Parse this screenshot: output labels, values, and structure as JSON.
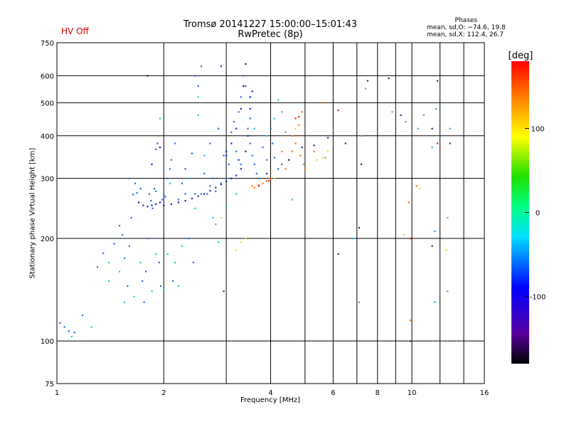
{
  "status": {
    "hv_label": "HV Off",
    "hv_color": "#cc0000"
  },
  "title": {
    "line1": "Tromsø 20141227 15:00:00–15:01:43",
    "line2": "RwPretec (8p)"
  },
  "phase_stats": {
    "heading": "Phases",
    "line1": "mean, sd,O: −74.6, 19.8",
    "line2": "mean, sd,X: 112.4, 26.7"
  },
  "chart_data": {
    "type": "scatter",
    "title": "Tromsø 20141227 15:00:00–15:01:43",
    "subtitle": "RwPretec (8p)",
    "xlabel": "Frequency [MHz]",
    "ylabel": "Stationary phase Virtual Height [km]",
    "x_scale": "log",
    "y_scale": "log",
    "xlim": [
      1,
      16
    ],
    "ylim": [
      75,
      750
    ],
    "x_ticks": [
      1,
      2,
      4,
      6,
      8,
      10,
      16
    ],
    "x_tick_labels": [
      "1",
      "2",
      "4",
      "6",
      "8",
      "10",
      "16"
    ],
    "x_minor": [
      3,
      5,
      7,
      9,
      12,
      14
    ],
    "y_ticks": [
      75,
      100,
      200,
      300,
      400,
      500,
      600,
      750
    ],
    "y_tick_labels": [
      "75",
      "100",
      "200",
      "300",
      "400",
      "500",
      "600",
      "750"
    ],
    "grid": true,
    "colorbar": {
      "label": "[deg]",
      "min": -180,
      "max": 180,
      "ticks": [
        100,
        0,
        -100
      ],
      "tick_labels": [
        "100",
        "0",
        "-100"
      ]
    },
    "series": [
      {
        "color": "#1f6fe0",
        "points": [
          [
            1.02,
            113
          ],
          [
            1.05,
            110
          ],
          [
            1.08,
            107
          ],
          [
            1.12,
            106
          ],
          [
            1.18,
            119
          ],
          [
            1.3,
            165
          ],
          [
            1.35,
            181
          ],
          [
            1.45,
            193
          ],
          [
            1.5,
            218
          ],
          [
            1.53,
            205
          ],
          [
            1.55,
            175
          ],
          [
            1.58,
            145
          ],
          [
            1.6,
            190
          ],
          [
            1.62,
            230
          ],
          [
            1.64,
            269
          ],
          [
            1.66,
            290
          ],
          [
            1.68,
            272
          ],
          [
            1.7,
            255
          ],
          [
            1.72,
            280
          ],
          [
            1.74,
            150
          ],
          [
            1.76,
            130
          ],
          [
            1.78,
            160
          ],
          [
            1.8,
            200
          ],
          [
            1.82,
            270
          ],
          [
            1.84,
            258
          ],
          [
            1.86,
            245
          ],
          [
            1.88,
            280
          ],
          [
            1.9,
            365
          ],
          [
            1.92,
            380
          ],
          [
            1.94,
            170
          ],
          [
            1.96,
            145
          ],
          [
            1.98,
            260
          ],
          [
            2.0,
            250
          ],
          [
            2.02,
            265
          ],
          [
            2.05,
            300
          ],
          [
            2.08,
            320
          ],
          [
            2.1,
            340
          ],
          [
            2.12,
            150
          ],
          [
            2.15,
            380
          ],
          [
            2.2,
            260
          ],
          [
            2.25,
            290
          ],
          [
            2.3,
            320
          ],
          [
            2.35,
            200
          ],
          [
            2.4,
            355
          ],
          [
            2.42,
            170
          ],
          [
            2.45,
            270
          ],
          [
            2.5,
            560
          ],
          [
            2.55,
            270
          ],
          [
            2.6,
            310
          ],
          [
            2.65,
            270
          ],
          [
            2.7,
            380
          ],
          [
            2.75,
            300
          ],
          [
            2.8,
            275
          ],
          [
            2.85,
            420
          ],
          [
            2.9,
            290
          ],
          [
            2.95,
            350
          ],
          [
            3.0,
            300
          ],
          [
            3.05,
            330
          ],
          [
            3.1,
            410
          ],
          [
            3.15,
            440
          ],
          [
            3.2,
            360
          ],
          [
            3.25,
            470
          ],
          [
            3.3,
            520
          ],
          [
            3.35,
            600
          ],
          [
            3.4,
            560
          ],
          [
            3.45,
            420
          ],
          [
            3.5,
            380
          ],
          [
            3.55,
            350
          ],
          [
            3.6,
            330
          ],
          [
            3.65,
            310
          ],
          [
            3.7,
            300
          ],
          [
            3.8,
            370
          ],
          [
            3.9,
            340
          ],
          [
            4.0,
            420
          ],
          [
            4.05,
            380
          ],
          [
            4.1,
            345
          ],
          [
            4.2,
            320
          ],
          [
            4.3,
            330
          ],
          [
            1.6,
            300
          ],
          [
            1.9,
            275
          ],
          [
            2.0,
            268
          ],
          [
            2.3,
            270
          ],
          [
            2.7,
            285
          ],
          [
            3.1,
            300
          ],
          [
            3.3,
            330
          ],
          [
            3.5,
            450
          ],
          [
            2.45,
            600
          ],
          [
            2.55,
            640
          ]
        ]
      },
      {
        "color": "#2020b0",
        "points": [
          [
            1.7,
            255
          ],
          [
            1.75,
            250
          ],
          [
            1.8,
            248
          ],
          [
            1.85,
            250
          ],
          [
            1.9,
            252
          ],
          [
            1.95,
            255
          ],
          [
            2.0,
            250
          ],
          [
            2.1,
            252
          ],
          [
            2.2,
            255
          ],
          [
            2.3,
            258
          ],
          [
            2.4,
            262
          ],
          [
            2.5,
            266
          ],
          [
            2.6,
            270
          ],
          [
            2.7,
            276
          ],
          [
            2.8,
            282
          ],
          [
            2.9,
            288
          ],
          [
            3.0,
            294
          ],
          [
            3.1,
            300
          ],
          [
            3.2,
            306
          ],
          [
            3.3,
            320
          ],
          [
            3.4,
            360
          ],
          [
            3.45,
            400
          ],
          [
            3.5,
            480
          ],
          [
            3.55,
            540
          ],
          [
            3.4,
            650
          ],
          [
            3.3,
            480
          ],
          [
            3.2,
            420
          ],
          [
            3.1,
            380
          ],
          [
            1.85,
            330
          ],
          [
            1.95,
            370
          ],
          [
            1.8,
            600
          ],
          [
            2.9,
            640
          ],
          [
            3.0,
            350
          ],
          [
            3.35,
            560
          ],
          [
            3.5,
            520
          ],
          [
            3.25,
            340
          ]
        ]
      },
      {
        "color": "#18c8d8",
        "points": [
          [
            1.1,
            103
          ],
          [
            1.25,
            110
          ],
          [
            1.4,
            150
          ],
          [
            1.5,
            160
          ],
          [
            1.72,
            170
          ],
          [
            1.9,
            180
          ],
          [
            2.05,
            180
          ],
          [
            2.15,
            170
          ],
          [
            2.25,
            190
          ],
          [
            2.35,
            300
          ],
          [
            2.45,
            245
          ],
          [
            2.5,
            520
          ],
          [
            2.6,
            350
          ],
          [
            2.75,
            230
          ],
          [
            2.85,
            195
          ],
          [
            3.0,
            250
          ],
          [
            3.2,
            270
          ],
          [
            3.6,
            420
          ],
          [
            3.9,
            400
          ],
          [
            4.1,
            450
          ],
          [
            4.3,
            470
          ],
          [
            1.95,
            450
          ],
          [
            2.08,
            290
          ],
          [
            2.5,
            460
          ],
          [
            4.2,
            510
          ],
          [
            1.4,
            170
          ],
          [
            1.55,
            130
          ],
          [
            1.65,
            135
          ],
          [
            1.85,
            140
          ],
          [
            2.0,
            142
          ],
          [
            2.2,
            145
          ]
        ]
      },
      {
        "color": "#ff7010",
        "points": [
          [
            3.55,
            285
          ],
          [
            3.6,
            282
          ],
          [
            3.7,
            287
          ],
          [
            3.8,
            290
          ],
          [
            3.9,
            295
          ],
          [
            4.0,
            300
          ],
          [
            4.4,
            320
          ],
          [
            4.5,
            340
          ],
          [
            4.6,
            360
          ],
          [
            4.7,
            380
          ],
          [
            4.8,
            430
          ],
          [
            4.9,
            470
          ],
          [
            4.85,
            350
          ],
          [
            4.95,
            330
          ],
          [
            4.3,
            360
          ],
          [
            4.6,
            400
          ],
          [
            5.0,
            320
          ],
          [
            10.3,
            285
          ],
          [
            12.6,
            230
          ],
          [
            9.8,
            255
          ],
          [
            9.9,
            115
          ],
          [
            5.3,
            360
          ],
          [
            5.6,
            500
          ]
        ]
      },
      {
        "color": "#e0e020",
        "points": [
          [
            3.3,
            195
          ],
          [
            3.4,
            200
          ],
          [
            3.2,
            185
          ],
          [
            5.4,
            340
          ],
          [
            5.6,
            345
          ],
          [
            5.8,
            360
          ],
          [
            4.1,
            300
          ],
          [
            4.7,
            420
          ],
          [
            9.5,
            205
          ],
          [
            10.5,
            280
          ],
          [
            12.5,
            185
          ],
          [
            2.9,
            230
          ]
        ]
      },
      {
        "color": "#e02020",
        "points": [
          [
            3.7,
            285
          ],
          [
            3.95,
            295
          ],
          [
            4.7,
            450
          ],
          [
            4.8,
            455
          ],
          [
            9.9,
            200
          ],
          [
            11.8,
            380
          ],
          [
            6.2,
            475
          ]
        ]
      },
      {
        "color": "#50c050",
        "points": [
          [
            4.4,
            410
          ],
          [
            5.7,
            345
          ],
          [
            4.6,
            260
          ],
          [
            2.8,
            220
          ]
        ]
      },
      {
        "color": "#2a2a80",
        "points": [
          [
            1.8,
            600
          ],
          [
            2.95,
            140
          ],
          [
            3.0,
            360
          ],
          [
            3.9,
            310
          ],
          [
            4.5,
            340
          ],
          [
            4.9,
            370
          ],
          [
            5.3,
            375
          ],
          [
            5.8,
            395
          ],
          [
            6.0,
            400
          ],
          [
            6.5,
            380
          ],
          [
            7.2,
            330
          ],
          [
            7.5,
            580
          ],
          [
            8.6,
            590
          ],
          [
            9.3,
            460
          ],
          [
            11.4,
            420
          ],
          [
            11.8,
            580
          ],
          [
            12.8,
            380
          ],
          [
            9.9,
            100
          ],
          [
            6.2,
            180
          ],
          [
            7.1,
            215
          ],
          [
            11.4,
            190
          ]
        ]
      },
      {
        "color": "#40a0e0",
        "points": [
          [
            7.2,
            400
          ],
          [
            7.4,
            550
          ],
          [
            8.8,
            470
          ],
          [
            9.6,
            440
          ],
          [
            10.4,
            420
          ],
          [
            10.8,
            460
          ],
          [
            11.2,
            300
          ],
          [
            11.7,
            480
          ],
          [
            11.6,
            210
          ],
          [
            12.6,
            140
          ],
          [
            11.6,
            130
          ],
          [
            7.1,
            130
          ],
          [
            6.8,
            200
          ],
          [
            11.4,
            370
          ],
          [
            12.8,
            420
          ]
        ]
      }
    ]
  }
}
